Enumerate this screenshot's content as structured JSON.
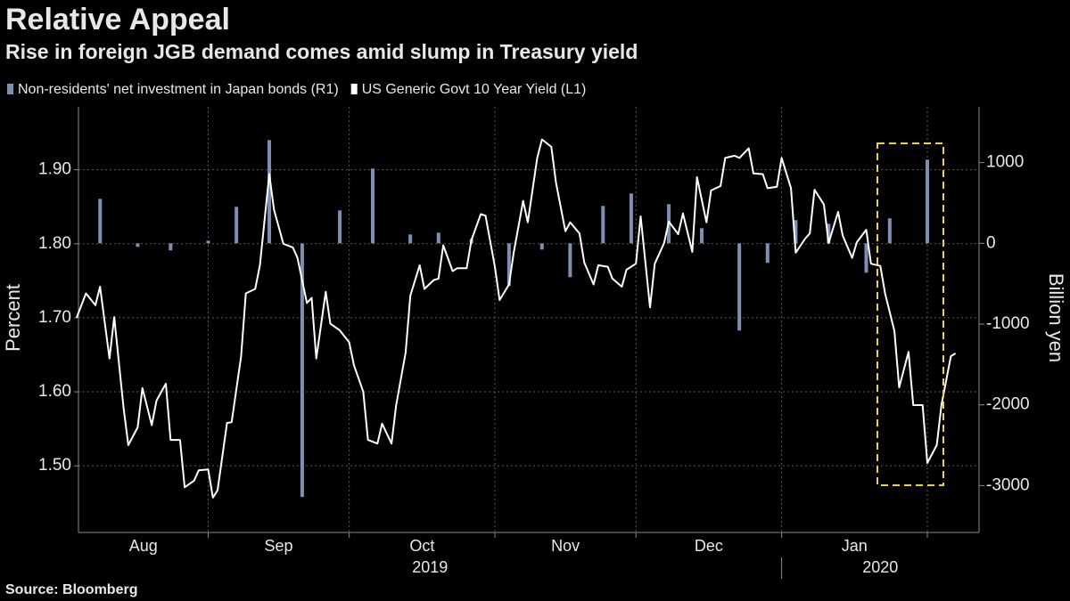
{
  "chart_data": {
    "type": "combo",
    "title": "Relative Appeal",
    "subtitle": "Rise in foreign JGB demand comes amid slump in Treasury yield",
    "source": "Source: Bloomberg",
    "ylabel": "Percent",
    "y2label": "Billion yen",
    "x_year_labels": [
      "2019",
      "2020"
    ],
    "xlim": [
      3.4,
      195
    ],
    "xticks": [
      {
        "value": 0,
        "label": "Aug"
      },
      {
        "value": 31,
        "label": "Sep"
      },
      {
        "value": 61,
        "label": "Oct"
      },
      {
        "value": 92,
        "label": "Nov"
      },
      {
        "value": 122,
        "label": "Dec"
      },
      {
        "value": 153,
        "label": "Jan"
      },
      {
        "value": 184,
        "label": null
      }
    ],
    "ylim": [
      1.41,
      1.985
    ],
    "yticks": [
      {
        "value": 1.5,
        "label": "1.50"
      },
      {
        "value": 1.6,
        "label": "1.60"
      },
      {
        "value": 1.7,
        "label": "1.70"
      },
      {
        "value": 1.8,
        "label": "1.80"
      },
      {
        "value": 1.9,
        "label": "1.90"
      }
    ],
    "y2lim": [
      -3580,
      1690
    ],
    "y2ticks": [
      -3000,
      -2000,
      -1000,
      0,
      1000
    ],
    "grid": true,
    "series": [
      {
        "name": "Non-residents' net investment in Japan bonds (R1)",
        "type": "bar",
        "axis": "y2",
        "color": "#7e8fb4",
        "x": [
          8,
          16,
          23,
          31,
          37,
          44,
          51,
          59,
          66,
          74,
          80,
          87,
          95,
          102,
          108,
          115,
          121,
          129,
          136,
          144,
          150,
          156,
          163,
          171,
          176,
          184
        ],
        "values": [
          551,
          -44,
          -88,
          33,
          452,
          1278,
          -3140,
          408,
          926,
          110,
          132,
          55,
          -529,
          -77,
          -419,
          463,
          617,
          485,
          187,
          -1080,
          -242,
          287,
          242,
          -364,
          309,
          1036
        ]
      },
      {
        "name": "US Generic Govt 10 Year Yield (L1)",
        "type": "line",
        "axis": "y",
        "color": "#ffffff",
        "x": [
          3,
          5,
          7,
          8,
          10,
          11,
          13,
          14,
          16,
          17,
          19,
          20,
          22,
          23,
          25,
          26,
          28,
          29,
          31,
          32,
          33,
          35,
          36,
          38,
          39,
          41,
          42,
          44,
          45,
          47,
          49,
          50,
          52,
          53,
          54,
          56,
          57,
          59,
          61,
          62,
          64,
          65,
          67,
          68,
          70,
          71,
          73,
          74,
          76,
          77,
          79,
          80,
          81,
          83,
          84,
          86,
          87,
          89,
          90,
          92,
          93,
          95,
          96,
          98,
          99,
          101,
          102,
          104,
          105,
          107,
          108,
          110,
          111,
          113,
          114,
          116,
          117,
          119,
          120,
          122,
          123,
          125,
          126,
          128,
          129,
          131,
          132,
          134,
          135,
          137,
          138,
          140,
          141,
          143,
          144,
          146,
          147,
          149,
          150,
          152,
          153,
          155,
          156,
          158,
          159,
          160,
          162,
          163,
          165,
          166,
          168,
          169,
          171,
          172,
          174,
          175,
          177,
          178,
          180,
          181,
          183,
          184,
          186,
          187,
          189,
          190
        ],
        "values": [
          1.7,
          1.733,
          1.717,
          1.742,
          1.645,
          1.701,
          1.578,
          1.528,
          1.552,
          1.605,
          1.555,
          1.588,
          1.611,
          1.535,
          1.535,
          1.471,
          1.48,
          1.494,
          1.495,
          1.457,
          1.467,
          1.558,
          1.559,
          1.648,
          1.733,
          1.739,
          1.771,
          1.894,
          1.846,
          1.8,
          1.795,
          1.781,
          1.72,
          1.727,
          1.645,
          1.735,
          1.692,
          1.683,
          1.667,
          1.636,
          1.6,
          1.535,
          1.53,
          1.557,
          1.53,
          1.582,
          1.653,
          1.73,
          1.771,
          1.739,
          1.751,
          1.753,
          1.798,
          1.763,
          1.767,
          1.767,
          1.805,
          1.84,
          1.838,
          1.769,
          1.724,
          1.745,
          1.788,
          1.858,
          1.829,
          1.916,
          1.941,
          1.931,
          1.882,
          1.817,
          1.829,
          1.814,
          1.775,
          1.745,
          1.771,
          1.769,
          1.753,
          1.742,
          1.765,
          1.773,
          1.837,
          1.714,
          1.773,
          1.801,
          1.83,
          1.813,
          1.841,
          1.789,
          1.89,
          1.829,
          1.872,
          1.878,
          1.916,
          1.919,
          1.916,
          1.929,
          1.895,
          1.894,
          1.875,
          1.877,
          1.916,
          1.875,
          1.788,
          1.807,
          1.814,
          1.873,
          1.853,
          1.801,
          1.843,
          1.811,
          1.781,
          1.802,
          1.819,
          1.773,
          1.77,
          1.733,
          1.682,
          1.606,
          1.654,
          1.582,
          1.582,
          1.504,
          1.528,
          1.582,
          1.648,
          1.652
        ]
      }
    ]
  }
}
